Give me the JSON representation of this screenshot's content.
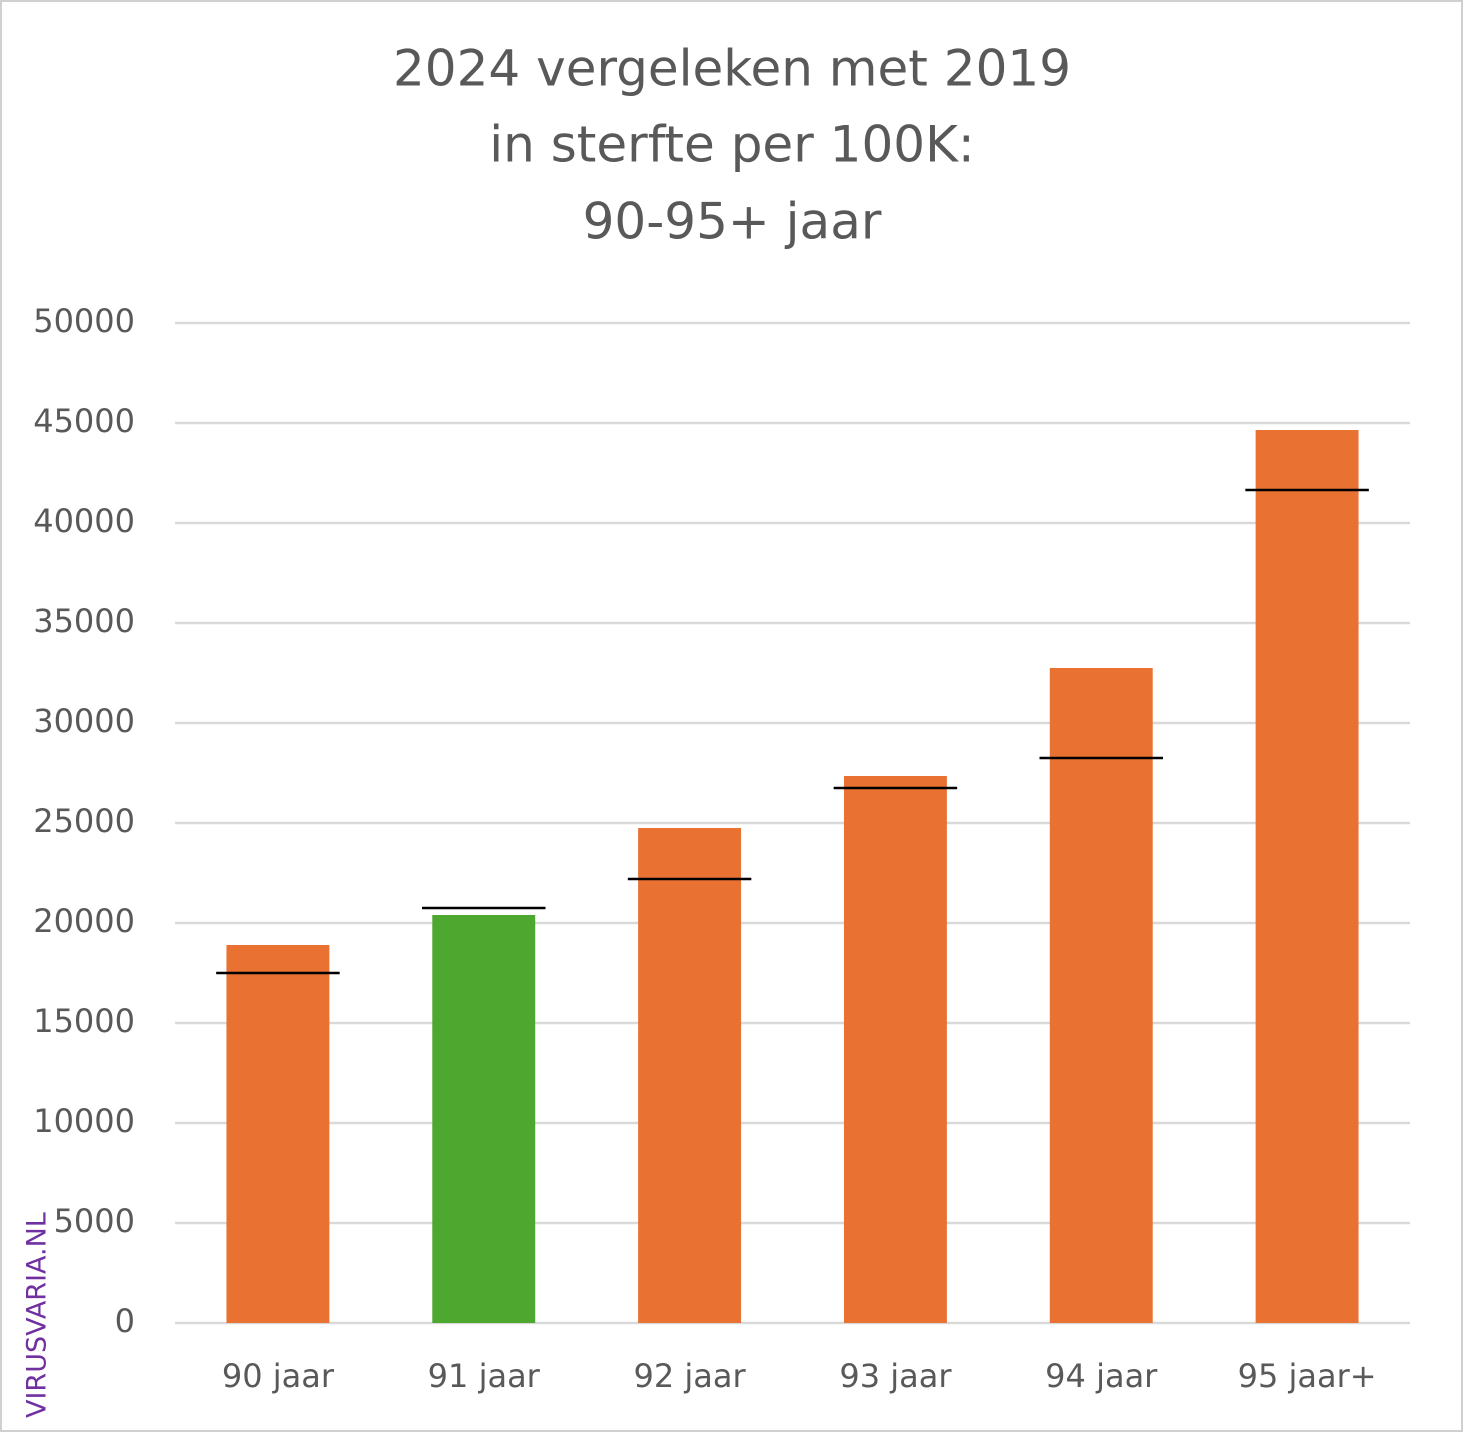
{
  "chart_data": {
    "type": "bar",
    "title": [
      "2024 vergeleken met 2019",
      "in sterfte per 100K:",
      "90-95+ jaar"
    ],
    "categories": [
      "90 jaar",
      "91 jaar",
      "92 jaar",
      "93 jaar",
      "94 jaar",
      "95 jaar+"
    ],
    "series": [
      {
        "colors": [
          "#e97132",
          "#4ea72e",
          "#e97132",
          "#e97132",
          "#e97132",
          "#e97132"
        ],
        "values": [
          18900,
          20400,
          24750,
          27350,
          32750,
          44650
        ]
      },
      {
        "color": "#000000",
        "marker": "line",
        "values": [
          17500,
          20750,
          22200,
          26750,
          28250,
          41650
        ]
      }
    ],
    "ylim": [
      0,
      50000
    ],
    "yticks": [
      0,
      5000,
      10000,
      15000,
      20000,
      25000,
      30000,
      35000,
      40000,
      45000,
      50000
    ],
    "grid": true,
    "watermark": "VIRUSVARIA.NL"
  }
}
